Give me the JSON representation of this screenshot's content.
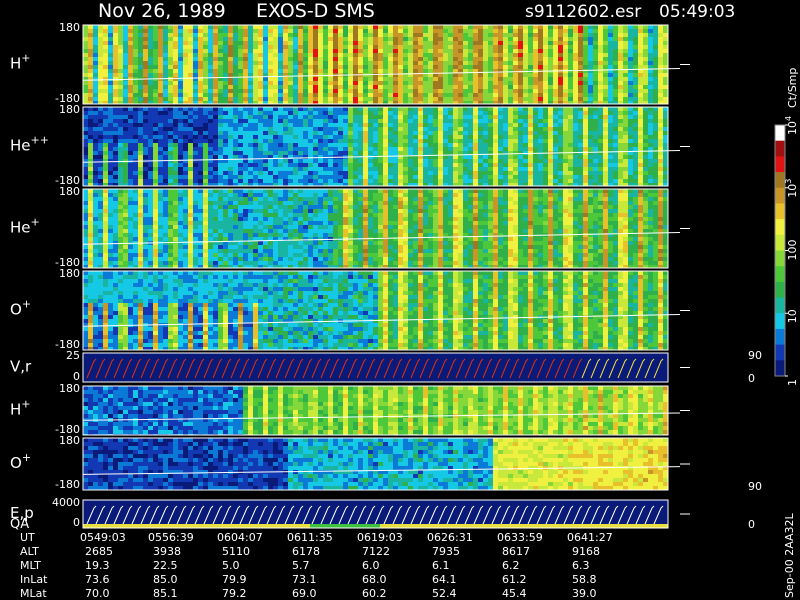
{
  "header": {
    "date": "Nov 26, 1989",
    "instrument": "EXOS-D SMS",
    "file": "s9112602.esr",
    "time": "05:49:03"
  },
  "chart_data": {
    "type": "heatmap",
    "panels": [
      {
        "ion": "H",
        "charge": "+",
        "ymax": "180",
        "ymin": "-180"
      },
      {
        "ion": "He",
        "charge": "++",
        "ymax": "180",
        "ymin": "-180"
      },
      {
        "ion": "He",
        "charge": "+",
        "ymax": "180",
        "ymin": "-180"
      },
      {
        "ion": "O",
        "charge": "+",
        "ymax": "180",
        "ymin": "-180"
      },
      {
        "ion": "V,r",
        "charge": "",
        "ymax": "25",
        "ymin": "0",
        "right_top": "90",
        "right_bottom": "0"
      },
      {
        "ion": "H",
        "charge": "+",
        "ymax": "180",
        "ymin": "-180"
      },
      {
        "ion": "O",
        "charge": "+",
        "ymax": "180",
        "ymin": "-180",
        "right_bottom": "90"
      },
      {
        "ion": "E,p",
        "charge": "",
        "ymax": "4000",
        "ymin": "0",
        "right_bottom": "0",
        "qa": "QA"
      }
    ],
    "colorbar": {
      "label": "Ct/Smp",
      "ticks": [
        {
          "base": "10",
          "exp": "4",
          "value": 10000
        },
        {
          "base": "10",
          "exp": "3",
          "value": 1000
        },
        {
          "base": "100",
          "exp": "",
          "value": 100
        },
        {
          "base": "10",
          "exp": "",
          "value": 10
        },
        {
          "base": "1",
          "exp": "",
          "value": 1
        }
      ],
      "colors": [
        "#0a1a78",
        "#1238b4",
        "#0b7ad6",
        "#14c8e6",
        "#19b5a0",
        "#2fb04a",
        "#4cc83a",
        "#86d83a",
        "#c8e83c",
        "#f0f040",
        "#e8c02c",
        "#c89628",
        "#a07822",
        "#e01414",
        "#a01010",
        "#ffffff"
      ]
    },
    "table": {
      "labels": [
        "UT",
        "ALT",
        "MLT",
        "InLat",
        "MLat"
      ],
      "columns": [
        [
          "0549:03",
          "2685",
          "19.3",
          "73.6",
          "70.0"
        ],
        [
          "0556:39",
          "3938",
          "22.5",
          "85.0",
          "85.1"
        ],
        [
          "0604:07",
          "5110",
          "5.0",
          "79.9",
          "79.2"
        ],
        [
          "0611:35",
          "6178",
          "5.7",
          "73.1",
          "69.0"
        ],
        [
          "0619:03",
          "7122",
          "6.0",
          "68.0",
          "60.2"
        ],
        [
          "0626:31",
          "7935",
          "6.1",
          "64.1",
          "52.4"
        ],
        [
          "0633:59",
          "8617",
          "6.2",
          "61.2",
          "45.4"
        ],
        [
          "0641:27",
          "9168",
          "6.3",
          "58.8",
          "39.0"
        ]
      ]
    },
    "footnote": "Sep-00  2AA32L"
  }
}
